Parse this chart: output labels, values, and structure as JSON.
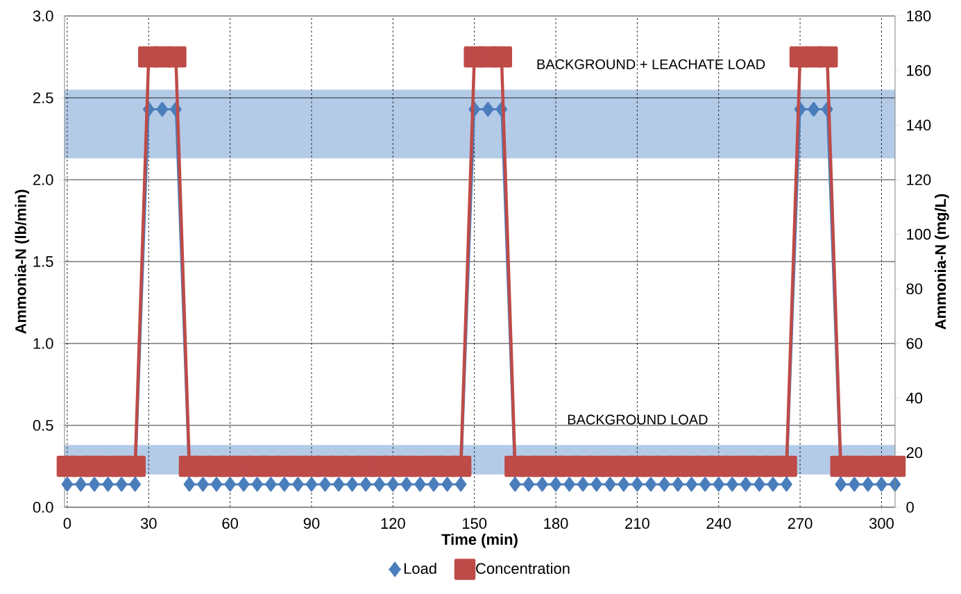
{
  "chart_data": {
    "type": "line",
    "xlabel": "Time (min)",
    "ylabel": "Ammonia-N (lb/min)",
    "y2label": "Ammonia-N (mg/L)",
    "x": [
      0,
      5,
      10,
      15,
      20,
      25,
      30,
      35,
      40,
      45,
      50,
      55,
      60,
      65,
      70,
      75,
      80,
      85,
      90,
      95,
      100,
      105,
      110,
      115,
      120,
      125,
      130,
      135,
      140,
      145,
      150,
      155,
      160,
      165,
      170,
      175,
      180,
      185,
      190,
      195,
      200,
      205,
      210,
      215,
      220,
      225,
      230,
      235,
      240,
      245,
      250,
      255,
      260,
      265,
      270,
      275,
      280,
      285,
      290,
      295,
      300,
      305
    ],
    "series": [
      {
        "name": "Load",
        "color": "#4a7ebb",
        "marker": "diamond",
        "values": [
          0.14,
          0.14,
          0.14,
          0.14,
          0.14,
          0.14,
          2.43,
          2.43,
          2.43,
          0.14,
          0.14,
          0.14,
          0.14,
          0.14,
          0.14,
          0.14,
          0.14,
          0.14,
          0.14,
          0.14,
          0.14,
          0.14,
          0.14,
          0.14,
          0.14,
          0.14,
          0.14,
          0.14,
          0.14,
          0.14,
          2.43,
          2.43,
          2.43,
          0.14,
          0.14,
          0.14,
          0.14,
          0.14,
          0.14,
          0.14,
          0.14,
          0.14,
          0.14,
          0.14,
          0.14,
          0.14,
          0.14,
          0.14,
          0.14,
          0.14,
          0.14,
          0.14,
          0.14,
          0.14,
          2.43,
          2.43,
          2.43,
          0.14,
          0.14,
          0.14,
          0.14,
          0.14
        ]
      },
      {
        "name": "Concentration",
        "color": "#be4b48",
        "marker": "square",
        "axis": "y2",
        "values": [
          15,
          15,
          15,
          15,
          15,
          15,
          165,
          165,
          165,
          15,
          15,
          15,
          15,
          15,
          15,
          15,
          15,
          15,
          15,
          15,
          15,
          15,
          15,
          15,
          15,
          15,
          15,
          15,
          15,
          15,
          165,
          165,
          165,
          15,
          15,
          15,
          15,
          15,
          15,
          15,
          15,
          15,
          15,
          15,
          15,
          15,
          15,
          15,
          15,
          15,
          15,
          15,
          15,
          15,
          165,
          165,
          165,
          15,
          15,
          15,
          15,
          15
        ]
      }
    ],
    "xlim": [
      -1,
      305
    ],
    "ylim": [
      0,
      3
    ],
    "y2lim": [
      0,
      180
    ],
    "xticks": [
      0,
      30,
      60,
      90,
      120,
      150,
      180,
      210,
      240,
      270,
      300
    ],
    "yticks": [
      {
        "value": 0,
        "label": "0.0"
      },
      {
        "value": 0.5,
        "label": "0.5"
      },
      {
        "value": 1,
        "label": "1.0"
      },
      {
        "value": 1.5,
        "label": "1.5"
      },
      {
        "value": 2,
        "label": "2.0"
      },
      {
        "value": 2.5,
        "label": "2.5"
      },
      {
        "value": 3,
        "label": "3.0"
      }
    ],
    "y2ticks": [
      0,
      20,
      40,
      60,
      80,
      100,
      120,
      140,
      160,
      180
    ],
    "bands": [
      {
        "axis": "y",
        "from": 2.13,
        "to": 2.55,
        "label": "BACKGROUND + LEACHATE LOAD",
        "color": "#b4cbe8"
      },
      {
        "axis": "y",
        "from": 0.2,
        "to": 0.38,
        "label": "BACKGROUND LOAD",
        "color": "#b4cbe8"
      }
    ],
    "grid": true,
    "legend": "bottom"
  }
}
